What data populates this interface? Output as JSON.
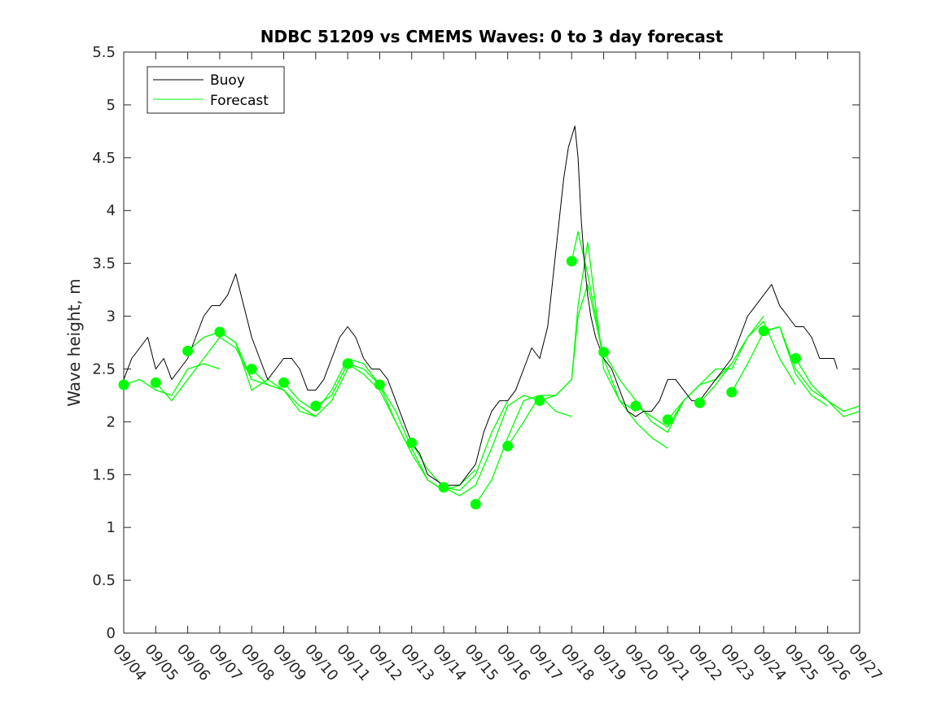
{
  "chart_data": {
    "type": "line",
    "title": "NDBC 51209 vs CMEMS Waves: 0 to 3 day forecast",
    "xlabel": "",
    "ylabel": "Wave height, m",
    "ylim": [
      0,
      5.5
    ],
    "yticks": [
      "0",
      "0.5",
      "1",
      "1.5",
      "2",
      "2.5",
      "3",
      "3.5",
      "4",
      "4.5",
      "5",
      "5.5"
    ],
    "xlim_days": [
      0,
      23
    ],
    "xtick_labels": [
      "09/04",
      "09/05",
      "09/06",
      "09/07",
      "09/08",
      "09/09",
      "09/10",
      "09/11",
      "09/12",
      "09/13",
      "09/14",
      "09/15",
      "09/16",
      "09/17",
      "09/18",
      "09/19",
      "09/20",
      "09/21",
      "09/22",
      "09/23",
      "09/24",
      "09/25",
      "09/26",
      "09/27"
    ],
    "grid": false,
    "legend_position": "top-left",
    "colors": {
      "buoy": "#000000",
      "forecast": "#00ff00",
      "axis": "#262626"
    },
    "series": [
      {
        "name": "Buoy",
        "role": "observation",
        "x_day": [
          0,
          0.25,
          0.5,
          0.75,
          1,
          1.25,
          1.5,
          1.75,
          2,
          2.25,
          2.5,
          2.75,
          3,
          3.25,
          3.5,
          3.75,
          4,
          4.25,
          4.5,
          4.75,
          5,
          5.25,
          5.5,
          5.75,
          6,
          6.25,
          6.5,
          6.75,
          7,
          7.25,
          7.5,
          7.75,
          8,
          8.25,
          8.5,
          8.75,
          9,
          9.25,
          9.5,
          9.75,
          10,
          10.25,
          10.5,
          10.75,
          11,
          11.25,
          11.5,
          11.75,
          12,
          12.25,
          12.5,
          12.75,
          13,
          13.25,
          13.5,
          13.75,
          13.9,
          14,
          14.1,
          14.2,
          14.3,
          14.4,
          14.5,
          14.6,
          14.75,
          15,
          15.25,
          15.5,
          15.75,
          16,
          16.25,
          16.5,
          16.75,
          17,
          17.25,
          17.5,
          17.75,
          18,
          18.25,
          18.5,
          18.75,
          19,
          19.25,
          19.5,
          19.75,
          20,
          20.25,
          20.5,
          20.75,
          21,
          21.25,
          21.5,
          21.75,
          22,
          22.2,
          22.3
        ],
        "y": [
          2.4,
          2.6,
          2.7,
          2.8,
          2.5,
          2.6,
          2.4,
          2.5,
          2.6,
          2.8,
          3.0,
          3.1,
          3.1,
          3.2,
          3.4,
          3.1,
          2.8,
          2.6,
          2.4,
          2.5,
          2.6,
          2.6,
          2.5,
          2.3,
          2.3,
          2.4,
          2.6,
          2.8,
          2.9,
          2.8,
          2.6,
          2.5,
          2.5,
          2.4,
          2.2,
          2.0,
          1.8,
          1.7,
          1.5,
          1.45,
          1.4,
          1.4,
          1.4,
          1.5,
          1.6,
          1.9,
          2.1,
          2.2,
          2.2,
          2.3,
          2.5,
          2.7,
          2.6,
          2.9,
          3.6,
          4.3,
          4.6,
          4.7,
          4.8,
          4.5,
          3.9,
          3.5,
          3.2,
          3.0,
          2.8,
          2.6,
          2.5,
          2.3,
          2.1,
          2.05,
          2.1,
          2.1,
          2.2,
          2.4,
          2.4,
          2.3,
          2.2,
          2.2,
          2.3,
          2.4,
          2.5,
          2.6,
          2.8,
          3.0,
          3.1,
          3.2,
          3.3,
          3.1,
          3.0,
          2.9,
          2.9,
          2.8,
          2.6,
          2.6,
          2.6,
          2.5
        ]
      },
      {
        "name": "Forecast",
        "role": "forecast-runs",
        "runs": [
          {
            "start_day": 0,
            "x_day": [
              0,
              0.5,
              1,
              1.5,
              2,
              2.5,
              3
            ],
            "y": [
              2.35,
              2.4,
              2.3,
              2.25,
              2.5,
              2.55,
              2.5
            ]
          },
          {
            "start_day": 1,
            "x_day": [
              1,
              1.5,
              2,
              2.5,
              3,
              3.5,
              4
            ],
            "y": [
              2.37,
              2.2,
              2.4,
              2.6,
              2.8,
              2.7,
              2.4
            ]
          },
          {
            "start_day": 2,
            "x_day": [
              2,
              2.5,
              3,
              3.5,
              4,
              4.5,
              5
            ],
            "y": [
              2.67,
              2.8,
              2.85,
              2.75,
              2.4,
              2.35,
              2.3
            ]
          },
          {
            "start_day": 3,
            "x_day": [
              3,
              3.5,
              4,
              4.5,
              5,
              5.5,
              6
            ],
            "y": [
              2.85,
              2.75,
              2.3,
              2.4,
              2.3,
              2.1,
              2.05
            ]
          },
          {
            "start_day": 4,
            "x_day": [
              4,
              4.5,
              5,
              5.5,
              6,
              6.5,
              7
            ],
            "y": [
              2.5,
              2.35,
              2.3,
              2.15,
              2.05,
              2.2,
              2.5
            ]
          },
          {
            "start_day": 5,
            "x_day": [
              5,
              5.5,
              6,
              6.5,
              7,
              7.5,
              8
            ],
            "y": [
              2.37,
              2.2,
              2.1,
              2.3,
              2.6,
              2.55,
              2.35
            ]
          },
          {
            "start_day": 6,
            "x_day": [
              6,
              6.5,
              7,
              7.5,
              8,
              8.5,
              9
            ],
            "y": [
              2.15,
              2.25,
              2.55,
              2.45,
              2.3,
              2.0,
              1.7
            ]
          },
          {
            "start_day": 7,
            "x_day": [
              7,
              7.5,
              8,
              8.5,
              9,
              9.5,
              10
            ],
            "y": [
              2.55,
              2.5,
              2.35,
              2.0,
              1.7,
              1.45,
              1.35
            ]
          },
          {
            "start_day": 8,
            "x_day": [
              8,
              8.5,
              9,
              9.5,
              10,
              10.5,
              11
            ],
            "y": [
              2.35,
              2.1,
              1.75,
              1.45,
              1.35,
              1.4,
              1.55
            ]
          },
          {
            "start_day": 9,
            "x_day": [
              9,
              9.5,
              10,
              10.5,
              11,
              11.5,
              12
            ],
            "y": [
              1.8,
              1.55,
              1.38,
              1.35,
              1.5,
              1.9,
              2.2
            ]
          },
          {
            "start_day": 10,
            "x_day": [
              10,
              10.5,
              11,
              11.5,
              12,
              12.5,
              13
            ],
            "y": [
              1.38,
              1.3,
              1.4,
              1.75,
              2.15,
              2.25,
              2.2
            ]
          },
          {
            "start_day": 11,
            "x_day": [
              11,
              11.5,
              12,
              12.5,
              13,
              13.5,
              14
            ],
            "y": [
              1.22,
              1.45,
              1.85,
              2.2,
              2.25,
              2.1,
              2.05
            ]
          },
          {
            "start_day": 12,
            "x_day": [
              12,
              12.5,
              13,
              13.5,
              14,
              14.2,
              14.5,
              15
            ],
            "y": [
              1.77,
              2.0,
              2.25,
              2.25,
              2.4,
              3.0,
              3.3,
              2.6
            ]
          },
          {
            "start_day": 13,
            "x_day": [
              13,
              13.5,
              14,
              14.2,
              14.5,
              15,
              15.5,
              16
            ],
            "y": [
              2.2,
              2.25,
              2.4,
              3.1,
              3.7,
              2.5,
              2.2,
              2.1
            ]
          },
          {
            "start_day": 14,
            "x_day": [
              14,
              14.2,
              14.5,
              15,
              15.5,
              16,
              16.5,
              17
            ],
            "y": [
              3.52,
              3.8,
              3.4,
              2.6,
              2.2,
              2.0,
              1.85,
              1.75
            ]
          },
          {
            "start_day": 15,
            "x_day": [
              15,
              15.5,
              16,
              16.5,
              17,
              17.5,
              18
            ],
            "y": [
              2.66,
              2.4,
              2.2,
              2.0,
              1.9,
              2.2,
              2.35
            ]
          },
          {
            "start_day": 16,
            "x_day": [
              16,
              16.5,
              17,
              17.5,
              18,
              18.5,
              19
            ],
            "y": [
              2.15,
              2.05,
              1.95,
              2.2,
              2.35,
              2.4,
              2.55
            ]
          },
          {
            "start_day": 17,
            "x_day": [
              17,
              17.5,
              18,
              18.5,
              19,
              19.5,
              20
            ],
            "y": [
              2.02,
              2.2,
              2.35,
              2.5,
              2.5,
              2.8,
              3.0
            ]
          },
          {
            "start_day": 18,
            "x_day": [
              18,
              18.5,
              19,
              19.5,
              20,
              20.5,
              21
            ],
            "y": [
              2.18,
              2.35,
              2.55,
              2.8,
              2.95,
              2.6,
              2.35
            ]
          },
          {
            "start_day": 19,
            "x_day": [
              19,
              19.5,
              20,
              20.5,
              21,
              21.5,
              22
            ],
            "y": [
              2.28,
              2.55,
              2.85,
              2.9,
              2.45,
              2.25,
              2.15
            ]
          },
          {
            "start_day": 20,
            "x_day": [
              20,
              20.5,
              21,
              21.5,
              22,
              22.5,
              23
            ],
            "y": [
              2.86,
              2.9,
              2.5,
              2.3,
              2.2,
              2.05,
              2.1
            ]
          },
          {
            "start_day": 21,
            "x_day": [
              21,
              21.5,
              22,
              22.5,
              23
            ],
            "y": [
              2.6,
              2.35,
              2.2,
              2.1,
              2.15
            ]
          }
        ]
      }
    ],
    "legend": [
      {
        "label": "Buoy",
        "color": "#000000"
      },
      {
        "label": "Forecast",
        "color": "#00ff00"
      }
    ]
  }
}
